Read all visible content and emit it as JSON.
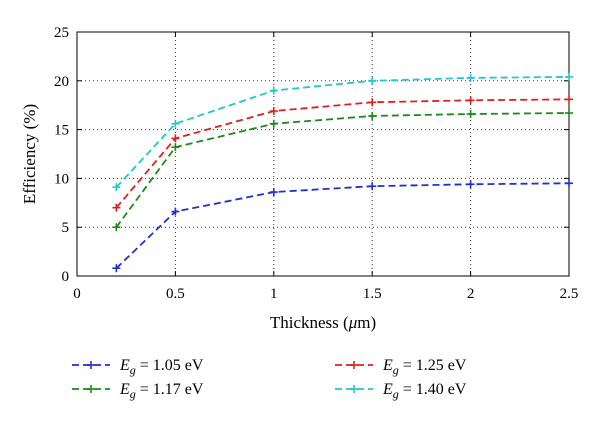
{
  "chart_data": {
    "type": "line",
    "title": "",
    "xlabel": "Thickness (μm)",
    "xlabel_parts": {
      "prefix": "Thickness (",
      "mu": "μ",
      "suffix": "m)"
    },
    "ylabel": "Efficiency (%)",
    "xlim": [
      0,
      2.5
    ],
    "ylim": [
      0,
      25
    ],
    "xticks": [
      0,
      0.5,
      1,
      1.5,
      2,
      2.5
    ],
    "xtick_labels": [
      "0",
      "0.5",
      "1",
      "1.5",
      "2",
      "2.5"
    ],
    "yticks": [
      0,
      5,
      10,
      15,
      20,
      25
    ],
    "ytick_labels": [
      "0",
      "5",
      "10",
      "15",
      "20",
      "25"
    ],
    "grid": true,
    "legend_position": "bottom",
    "x": [
      0.2,
      0.5,
      1,
      1.5,
      2,
      2.5
    ],
    "series": [
      {
        "name": "Eg = 1.05 eV",
        "sym": "E",
        "sub": "g",
        "value": " = 1.05 eV",
        "color": "#1f2fd6",
        "values": [
          0.8,
          6.6,
          8.6,
          9.2,
          9.4,
          9.5
        ]
      },
      {
        "name": "Eg = 1.17 eV",
        "sym": "E",
        "sub": "g",
        "value": " = 1.17 eV",
        "color": "#1a8a1a",
        "values": [
          5.0,
          13.2,
          15.6,
          16.4,
          16.6,
          16.7
        ]
      },
      {
        "name": "Eg = 1.25 eV",
        "sym": "E",
        "sub": "g",
        "value": " = 1.25 eV",
        "color": "#e02020",
        "values": [
          7.0,
          14.1,
          16.9,
          17.8,
          18.0,
          18.1
        ]
      },
      {
        "name": "Eg = 1.40 eV",
        "sym": "E",
        "sub": "g",
        "value": " = 1.40 eV",
        "color": "#1fc8cc",
        "values": [
          9.1,
          15.6,
          19.0,
          20.0,
          20.3,
          20.4
        ]
      }
    ]
  }
}
